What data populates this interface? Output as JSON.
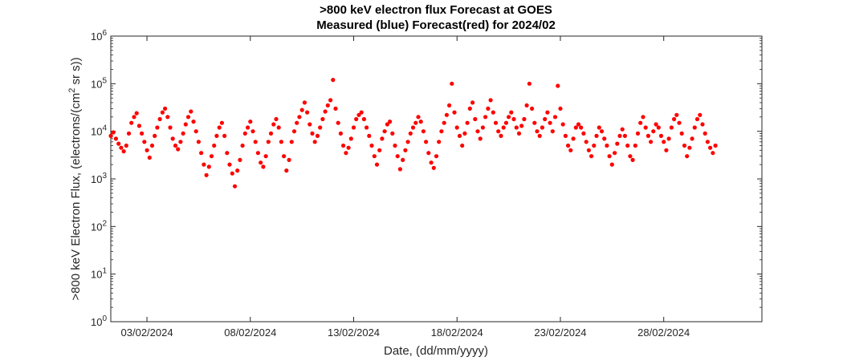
{
  "chart_data": {
    "type": "scatter",
    "title": ">800 keV electron flux Forecast at GOES",
    "subtitle": "Measured (blue) Forecast(red) for 2024/02",
    "xlabel": "Date, (dd/mm/yyyy)",
    "ylabel": {
      "text_before": ">800 keV Electron Flux, (electrons/(cm",
      "superscript": "2",
      "text_after": " sr s))"
    },
    "y_scale": "log",
    "ylim": [
      1,
      1000000
    ],
    "xlim": [
      "2024-02-01T06:00",
      "2024-03-03T18:00"
    ],
    "x_ticks": [
      {
        "date": "2024-02-03",
        "label": "03/02/2024"
      },
      {
        "date": "2024-02-08",
        "label": "08/02/2024"
      },
      {
        "date": "2024-02-13",
        "label": "13/02/2024"
      },
      {
        "date": "2024-02-18",
        "label": "18/02/2024"
      },
      {
        "date": "2024-02-23",
        "label": "23/02/2024"
      },
      {
        "date": "2024-02-28",
        "label": "28/02/2024"
      }
    ],
    "y_ticks": [
      {
        "base": "10",
        "exp": "0",
        "value": 1
      },
      {
        "base": "10",
        "exp": "1",
        "value": 10
      },
      {
        "base": "10",
        "exp": "2",
        "value": 100
      },
      {
        "base": "10",
        "exp": "3",
        "value": 1000
      },
      {
        "base": "10",
        "exp": "4",
        "value": 10000
      },
      {
        "base": "10",
        "exp": "5",
        "value": 100000
      },
      {
        "base": "10",
        "exp": "6",
        "value": 1000000
      }
    ],
    "grid": false,
    "series": [
      {
        "color": "#ff0000",
        "points": [
          [
            "2024-02-01T06:00",
            8000
          ],
          [
            "2024-02-01T09:00",
            9500
          ],
          [
            "2024-02-01T12:00",
            7000
          ],
          [
            "2024-02-01T15:00",
            5500
          ],
          [
            "2024-02-01T18:00",
            4500
          ],
          [
            "2024-02-01T21:00",
            3800
          ],
          [
            "2024-02-02T00:00",
            5000
          ],
          [
            "2024-02-02T03:00",
            9000
          ],
          [
            "2024-02-02T06:00",
            15000
          ],
          [
            "2024-02-02T09:00",
            20000
          ],
          [
            "2024-02-02T12:00",
            24000
          ],
          [
            "2024-02-02T15:00",
            13000
          ],
          [
            "2024-02-02T18:00",
            9000
          ],
          [
            "2024-02-02T21:00",
            6000
          ],
          [
            "2024-02-03T00:00",
            4000
          ],
          [
            "2024-02-03T03:00",
            2800
          ],
          [
            "2024-02-03T06:00",
            5000
          ],
          [
            "2024-02-03T09:00",
            8000
          ],
          [
            "2024-02-03T12:00",
            12000
          ],
          [
            "2024-02-03T15:00",
            18000
          ],
          [
            "2024-02-03T18:00",
            25000
          ],
          [
            "2024-02-03T21:00",
            30000
          ],
          [
            "2024-02-04T00:00",
            20000
          ],
          [
            "2024-02-04T03:00",
            12000
          ],
          [
            "2024-02-04T06:00",
            7000
          ],
          [
            "2024-02-04T09:00",
            5000
          ],
          [
            "2024-02-04T12:00",
            4200
          ],
          [
            "2024-02-04T15:00",
            6000
          ],
          [
            "2024-02-04T18:00",
            9000
          ],
          [
            "2024-02-04T21:00",
            14000
          ],
          [
            "2024-02-05T00:00",
            20000
          ],
          [
            "2024-02-05T03:00",
            26000
          ],
          [
            "2024-02-05T06:00",
            16000
          ],
          [
            "2024-02-05T09:00",
            10000
          ],
          [
            "2024-02-05T12:00",
            6000
          ],
          [
            "2024-02-05T15:00",
            3500
          ],
          [
            "2024-02-05T18:00",
            2000
          ],
          [
            "2024-02-05T21:00",
            1200
          ],
          [
            "2024-02-06T00:00",
            1800
          ],
          [
            "2024-02-06T03:00",
            3000
          ],
          [
            "2024-02-06T06:00",
            5000
          ],
          [
            "2024-02-06T09:00",
            8000
          ],
          [
            "2024-02-06T12:00",
            12000
          ],
          [
            "2024-02-06T15:00",
            15000
          ],
          [
            "2024-02-06T18:00",
            8000
          ],
          [
            "2024-02-06T21:00",
            3500
          ],
          [
            "2024-02-07T00:00",
            2000
          ],
          [
            "2024-02-07T03:00",
            1300
          ],
          [
            "2024-02-07T06:00",
            700
          ],
          [
            "2024-02-07T09:00",
            1500
          ],
          [
            "2024-02-07T12:00",
            2500
          ],
          [
            "2024-02-07T15:00",
            5000
          ],
          [
            "2024-02-07T18:00",
            9000
          ],
          [
            "2024-02-07T21:00",
            12000
          ],
          [
            "2024-02-08T00:00",
            16000
          ],
          [
            "2024-02-08T03:00",
            10000
          ],
          [
            "2024-02-08T06:00",
            6000
          ],
          [
            "2024-02-08T09:00",
            3500
          ],
          [
            "2024-02-08T12:00",
            2200
          ],
          [
            "2024-02-08T15:00",
            1800
          ],
          [
            "2024-02-08T18:00",
            3000
          ],
          [
            "2024-02-08T21:00",
            6000
          ],
          [
            "2024-02-09T00:00",
            9000
          ],
          [
            "2024-02-09T03:00",
            14000
          ],
          [
            "2024-02-09T06:00",
            18000
          ],
          [
            "2024-02-09T09:00",
            12000
          ],
          [
            "2024-02-09T12:00",
            6000
          ],
          [
            "2024-02-09T15:00",
            3000
          ],
          [
            "2024-02-09T18:00",
            1500
          ],
          [
            "2024-02-09T21:00",
            2500
          ],
          [
            "2024-02-10T00:00",
            6000
          ],
          [
            "2024-02-10T03:00",
            10000
          ],
          [
            "2024-02-10T06:00",
            15000
          ],
          [
            "2024-02-10T09:00",
            20000
          ],
          [
            "2024-02-10T12:00",
            28000
          ],
          [
            "2024-02-10T15:00",
            40000
          ],
          [
            "2024-02-10T18:00",
            25000
          ],
          [
            "2024-02-10T21:00",
            14000
          ],
          [
            "2024-02-11T00:00",
            9000
          ],
          [
            "2024-02-11T03:00",
            6000
          ],
          [
            "2024-02-11T06:00",
            8000
          ],
          [
            "2024-02-11T09:00",
            12000
          ],
          [
            "2024-02-11T12:00",
            18000
          ],
          [
            "2024-02-11T15:00",
            26000
          ],
          [
            "2024-02-11T18:00",
            35000
          ],
          [
            "2024-02-11T21:00",
            45000
          ],
          [
            "2024-02-12T00:00",
            120000
          ],
          [
            "2024-02-12T03:00",
            30000
          ],
          [
            "2024-02-12T06:00",
            15000
          ],
          [
            "2024-02-12T09:00",
            9000
          ],
          [
            "2024-02-12T12:00",
            5000
          ],
          [
            "2024-02-12T15:00",
            3500
          ],
          [
            "2024-02-12T18:00",
            4500
          ],
          [
            "2024-02-12T21:00",
            7000
          ],
          [
            "2024-02-13T00:00",
            12000
          ],
          [
            "2024-02-13T03:00",
            18000
          ],
          [
            "2024-02-13T06:00",
            22000
          ],
          [
            "2024-02-13T09:00",
            25000
          ],
          [
            "2024-02-13T12:00",
            18000
          ],
          [
            "2024-02-13T15:00",
            12000
          ],
          [
            "2024-02-13T18:00",
            8000
          ],
          [
            "2024-02-13T21:00",
            5000
          ],
          [
            "2024-02-14T00:00",
            3000
          ],
          [
            "2024-02-14T03:00",
            2000
          ],
          [
            "2024-02-14T06:00",
            4000
          ],
          [
            "2024-02-14T09:00",
            7000
          ],
          [
            "2024-02-14T12:00",
            10000
          ],
          [
            "2024-02-14T15:00",
            14000
          ],
          [
            "2024-02-14T18:00",
            16000
          ],
          [
            "2024-02-14T21:00",
            9000
          ],
          [
            "2024-02-15T00:00",
            5000
          ],
          [
            "2024-02-15T03:00",
            3000
          ],
          [
            "2024-02-15T06:00",
            1600
          ],
          [
            "2024-02-15T09:00",
            2500
          ],
          [
            "2024-02-15T12:00",
            4000
          ],
          [
            "2024-02-15T15:00",
            6000
          ],
          [
            "2024-02-15T18:00",
            9000
          ],
          [
            "2024-02-15T21:00",
            12000
          ],
          [
            "2024-02-16T00:00",
            15000
          ],
          [
            "2024-02-16T03:00",
            20000
          ],
          [
            "2024-02-16T06:00",
            16000
          ],
          [
            "2024-02-16T09:00",
            10000
          ],
          [
            "2024-02-16T12:00",
            6000
          ],
          [
            "2024-02-16T15:00",
            3500
          ],
          [
            "2024-02-16T18:00",
            2200
          ],
          [
            "2024-02-16T21:00",
            1700
          ],
          [
            "2024-02-17T00:00",
            3000
          ],
          [
            "2024-02-17T03:00",
            6000
          ],
          [
            "2024-02-17T06:00",
            10000
          ],
          [
            "2024-02-17T09:00",
            15000
          ],
          [
            "2024-02-17T12:00",
            22000
          ],
          [
            "2024-02-17T15:00",
            35000
          ],
          [
            "2024-02-17T18:00",
            100000
          ],
          [
            "2024-02-17T21:00",
            25000
          ],
          [
            "2024-02-18T00:00",
            12000
          ],
          [
            "2024-02-18T03:00",
            8000
          ],
          [
            "2024-02-18T06:00",
            5000
          ],
          [
            "2024-02-18T09:00",
            9000
          ],
          [
            "2024-02-18T12:00",
            15000
          ],
          [
            "2024-02-18T15:00",
            30000
          ],
          [
            "2024-02-18T18:00",
            40000
          ],
          [
            "2024-02-18T21:00",
            18000
          ],
          [
            "2024-02-19T00:00",
            10000
          ],
          [
            "2024-02-19T03:00",
            7000
          ],
          [
            "2024-02-19T06:00",
            12000
          ],
          [
            "2024-02-19T09:00",
            20000
          ],
          [
            "2024-02-19T12:00",
            30000
          ],
          [
            "2024-02-19T15:00",
            45000
          ],
          [
            "2024-02-19T18:00",
            25000
          ],
          [
            "2024-02-19T21:00",
            15000
          ],
          [
            "2024-02-20T00:00",
            10000
          ],
          [
            "2024-02-20T03:00",
            8000
          ],
          [
            "2024-02-20T06:00",
            12000
          ],
          [
            "2024-02-20T09:00",
            15000
          ],
          [
            "2024-02-20T12:00",
            20000
          ],
          [
            "2024-02-20T15:00",
            25000
          ],
          [
            "2024-02-20T18:00",
            18000
          ],
          [
            "2024-02-20T21:00",
            12000
          ],
          [
            "2024-02-21T00:00",
            9000
          ],
          [
            "2024-02-21T03:00",
            13000
          ],
          [
            "2024-02-21T06:00",
            18000
          ],
          [
            "2024-02-21T09:00",
            35000
          ],
          [
            "2024-02-21T12:00",
            100000
          ],
          [
            "2024-02-21T15:00",
            30000
          ],
          [
            "2024-02-21T18:00",
            15000
          ],
          [
            "2024-02-21T21:00",
            10000
          ],
          [
            "2024-02-22T00:00",
            8000
          ],
          [
            "2024-02-22T03:00",
            12000
          ],
          [
            "2024-02-22T06:00",
            18000
          ],
          [
            "2024-02-22T09:00",
            25000
          ],
          [
            "2024-02-22T12:00",
            15000
          ],
          [
            "2024-02-22T15:00",
            10000
          ],
          [
            "2024-02-22T18:00",
            20000
          ],
          [
            "2024-02-22T21:00",
            90000
          ],
          [
            "2024-02-23T00:00",
            30000
          ],
          [
            "2024-02-23T03:00",
            14000
          ],
          [
            "2024-02-23T06:00",
            8000
          ],
          [
            "2024-02-23T09:00",
            5000
          ],
          [
            "2024-02-23T12:00",
            4000
          ],
          [
            "2024-02-23T15:00",
            7000
          ],
          [
            "2024-02-23T18:00",
            12000
          ],
          [
            "2024-02-23T21:00",
            14000
          ],
          [
            "2024-02-24T00:00",
            12000
          ],
          [
            "2024-02-24T03:00",
            9000
          ],
          [
            "2024-02-24T06:00",
            6000
          ],
          [
            "2024-02-24T09:00",
            4000
          ],
          [
            "2024-02-24T12:00",
            3000
          ],
          [
            "2024-02-24T15:00",
            5000
          ],
          [
            "2024-02-24T18:00",
            8000
          ],
          [
            "2024-02-24T21:00",
            12000
          ],
          [
            "2024-02-25T00:00",
            10000
          ],
          [
            "2024-02-25T03:00",
            7000
          ],
          [
            "2024-02-25T06:00",
            5000
          ],
          [
            "2024-02-25T09:00",
            3000
          ],
          [
            "2024-02-25T12:00",
            2000
          ],
          [
            "2024-02-25T15:00",
            3500
          ],
          [
            "2024-02-25T18:00",
            5500
          ],
          [
            "2024-02-25T21:00",
            8000
          ],
          [
            "2024-02-26T00:00",
            11000
          ],
          [
            "2024-02-26T03:00",
            8000
          ],
          [
            "2024-02-26T06:00",
            5000
          ],
          [
            "2024-02-26T09:00",
            3000
          ],
          [
            "2024-02-26T12:00",
            2500
          ],
          [
            "2024-02-26T15:00",
            5000
          ],
          [
            "2024-02-26T18:00",
            9000
          ],
          [
            "2024-02-26T21:00",
            15000
          ],
          [
            "2024-02-27T00:00",
            20000
          ],
          [
            "2024-02-27T03:00",
            12000
          ],
          [
            "2024-02-27T06:00",
            8000
          ],
          [
            "2024-02-27T09:00",
            6000
          ],
          [
            "2024-02-27T12:00",
            10000
          ],
          [
            "2024-02-27T15:00",
            14000
          ],
          [
            "2024-02-27T18:00",
            12000
          ],
          [
            "2024-02-27T21:00",
            8000
          ],
          [
            "2024-02-28T00:00",
            6000
          ],
          [
            "2024-02-28T03:00",
            4000
          ],
          [
            "2024-02-28T06:00",
            7000
          ],
          [
            "2024-02-28T09:00",
            12000
          ],
          [
            "2024-02-28T12:00",
            18000
          ],
          [
            "2024-02-28T15:00",
            22000
          ],
          [
            "2024-02-28T18:00",
            15000
          ],
          [
            "2024-02-28T21:00",
            9000
          ],
          [
            "2024-02-29T00:00",
            5000
          ],
          [
            "2024-02-29T03:00",
            3000
          ],
          [
            "2024-02-29T06:00",
            4500
          ],
          [
            "2024-02-29T09:00",
            7000
          ],
          [
            "2024-02-29T12:00",
            12000
          ],
          [
            "2024-02-29T15:00",
            18000
          ],
          [
            "2024-02-29T18:00",
            22000
          ],
          [
            "2024-02-29T21:00",
            14000
          ],
          [
            "2024-03-01T00:00",
            9000
          ],
          [
            "2024-03-01T03:00",
            6000
          ],
          [
            "2024-03-01T06:00",
            4500
          ],
          [
            "2024-03-01T09:00",
            3500
          ],
          [
            "2024-03-01T12:00",
            5000
          ]
        ]
      }
    ]
  }
}
